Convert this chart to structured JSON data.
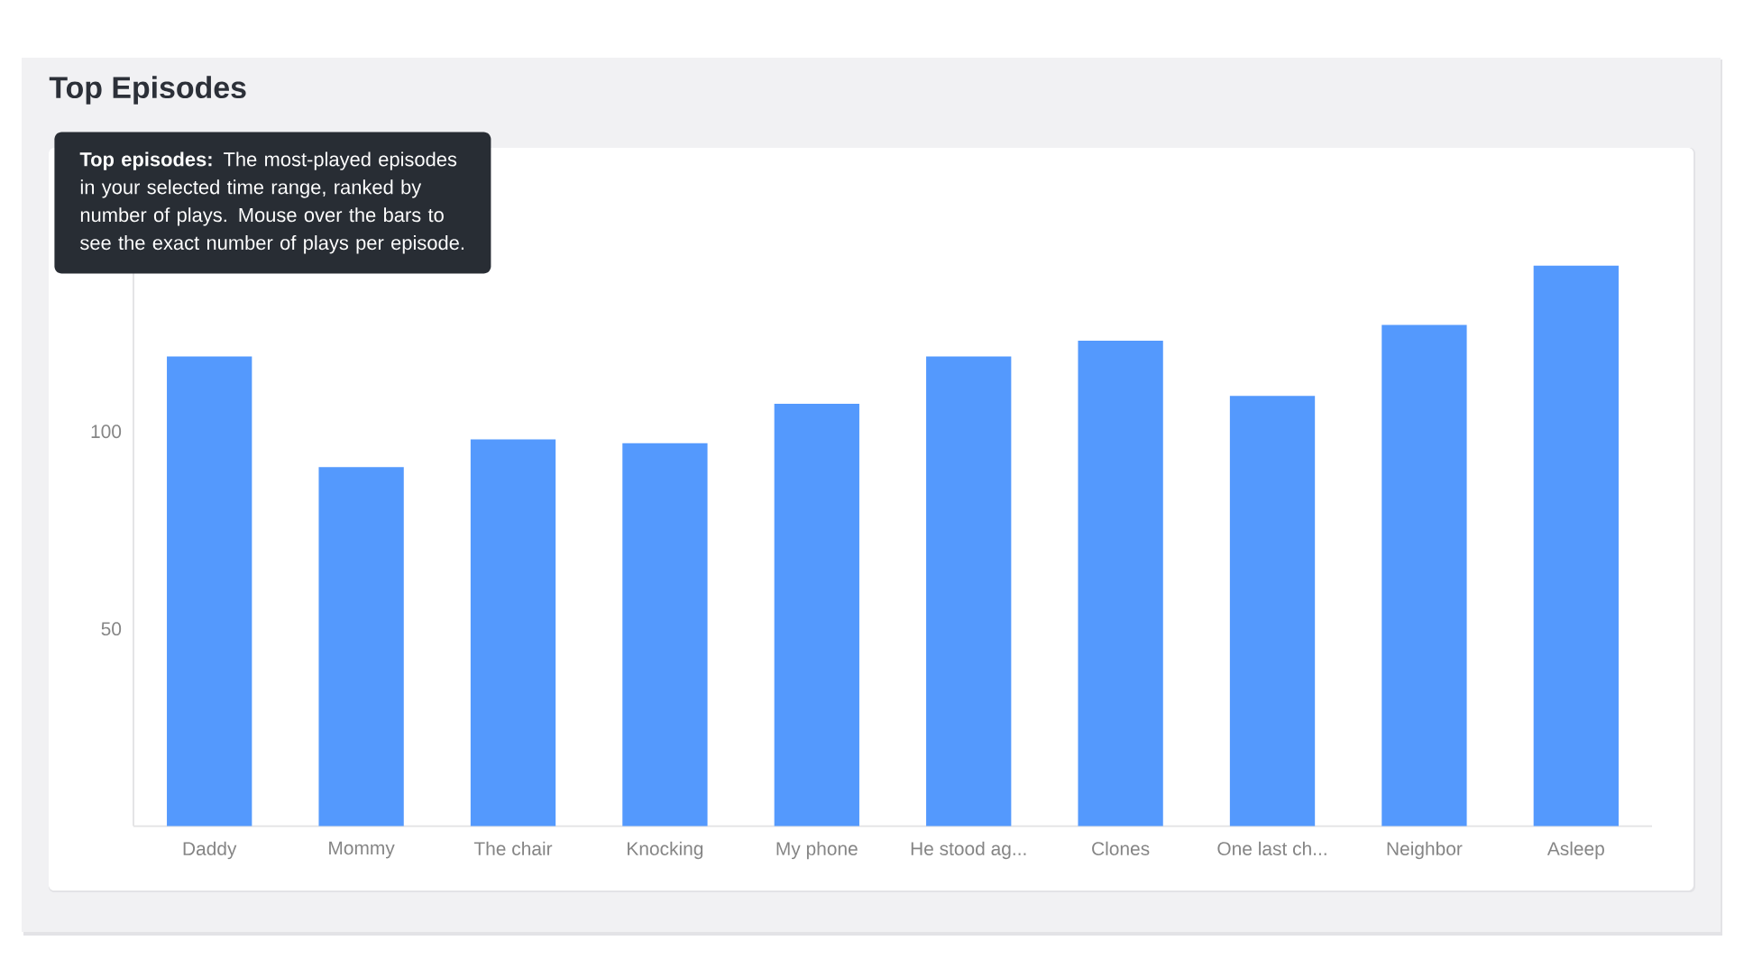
{
  "chart_data": {
    "type": "bar",
    "title": "Top Episodes",
    "categories": [
      "Daddy",
      "Mommy",
      "The chair",
      "Knocking",
      "My phone",
      "He stood ag...",
      "Clones",
      "One last ch...",
      "Neighbor",
      "Asleep"
    ],
    "values": [
      119,
      91,
      98,
      97,
      107,
      119,
      123,
      109,
      127,
      142
    ],
    "color": "#5499fd",
    "ylim": [
      0,
      160
    ],
    "yticks": [
      50,
      100
    ],
    "annotations": [
      "**Top episodes:** The most-played episodes in your selected time range, ranked by number of plays. Mouse over the bars to see the exact number of plays per episode."
    ]
  }
}
